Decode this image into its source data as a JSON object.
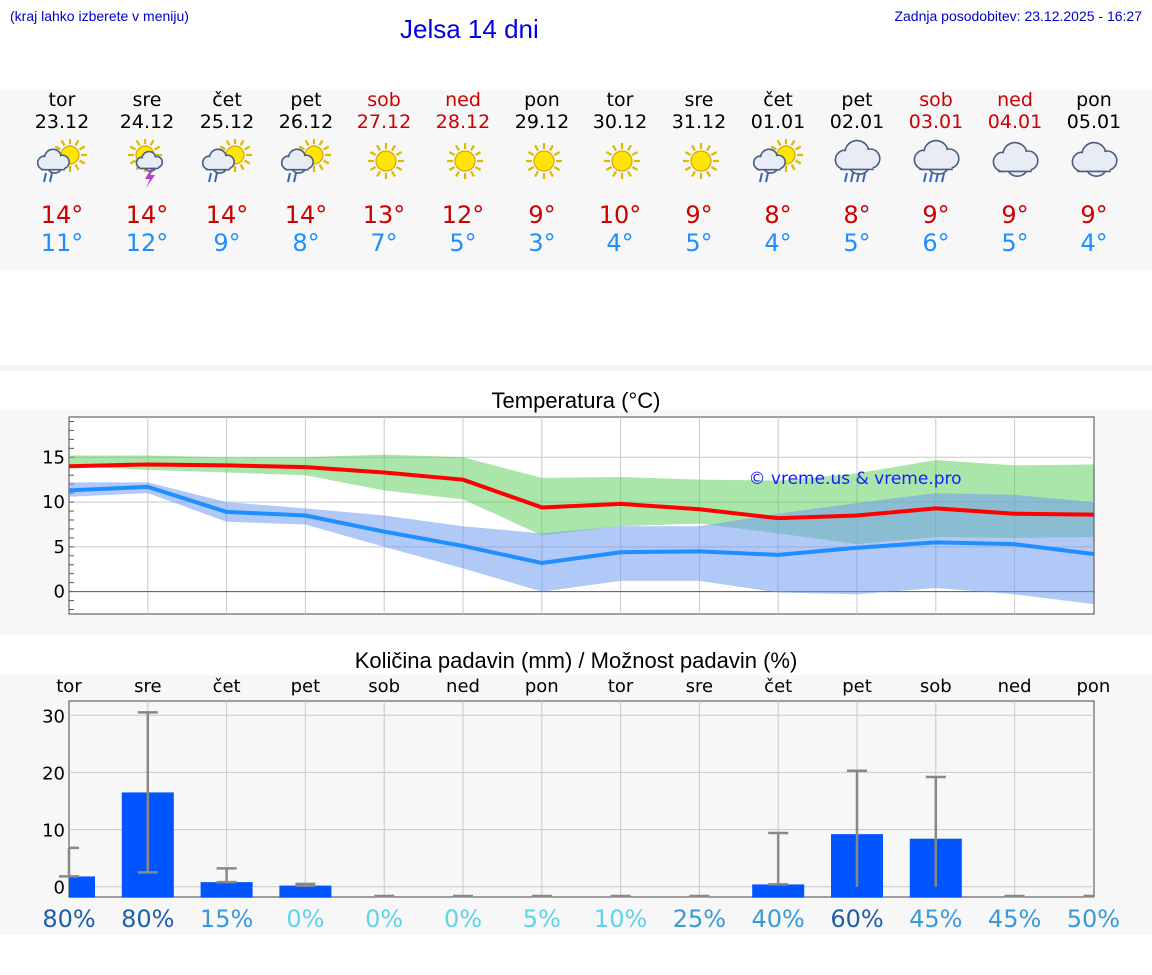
{
  "header": {
    "menu_hint": "(kraj lahko izberete v meniju)",
    "title": "Jelsa 14 dni",
    "updated": "Zadnja posodobitev: 23.12.2025 - 16:27"
  },
  "colors": {
    "max": "#cc0000",
    "min": "#1f8fff",
    "weekend": "#cc0000",
    "bar": "#0055ff"
  },
  "forecast": [
    {
      "day": "tor",
      "date": "23.12",
      "icon": "sun-cloud-rain-icon",
      "max": "14°",
      "min": "11°",
      "weekend": false
    },
    {
      "day": "sre",
      "date": "24.12",
      "icon": "sun-storm-icon",
      "max": "14°",
      "min": "12°",
      "weekend": false
    },
    {
      "day": "čet",
      "date": "25.12",
      "icon": "sun-cloud-rain-icon",
      "max": "14°",
      "min": "9°",
      "weekend": false
    },
    {
      "day": "pet",
      "date": "26.12",
      "icon": "sun-cloud-rain-icon",
      "max": "14°",
      "min": "8°",
      "weekend": false
    },
    {
      "day": "sob",
      "date": "27.12",
      "icon": "sun-icon",
      "max": "13°",
      "min": "7°",
      "weekend": true
    },
    {
      "day": "ned",
      "date": "28.12",
      "icon": "sun-icon",
      "max": "12°",
      "min": "5°",
      "weekend": true
    },
    {
      "day": "pon",
      "date": "29.12",
      "icon": "sun-icon",
      "max": "9°",
      "min": "3°",
      "weekend": false
    },
    {
      "day": "tor",
      "date": "30.12",
      "icon": "sun-icon",
      "max": "10°",
      "min": "4°",
      "weekend": false
    },
    {
      "day": "sre",
      "date": "31.12",
      "icon": "sun-icon",
      "max": "9°",
      "min": "5°",
      "weekend": false
    },
    {
      "day": "čet",
      "date": "01.01",
      "icon": "sun-cloud-rain-icon",
      "max": "8°",
      "min": "4°",
      "weekend": false
    },
    {
      "day": "pet",
      "date": "02.01",
      "icon": "cloud-rain-icon",
      "max": "8°",
      "min": "5°",
      "weekend": false
    },
    {
      "day": "sob",
      "date": "03.01",
      "icon": "cloud-rain-icon",
      "max": "9°",
      "min": "6°",
      "weekend": true
    },
    {
      "day": "ned",
      "date": "04.01",
      "icon": "cloud-icon",
      "max": "9°",
      "min": "5°",
      "weekend": true
    },
    {
      "day": "pon",
      "date": "05.01",
      "icon": "cloud-icon",
      "max": "9°",
      "min": "4°",
      "weekend": false
    }
  ],
  "chart_data": [
    {
      "type": "line",
      "title": "Temperatura (°C)",
      "watermark": "© vreme.us & vreme.pro",
      "x": [
        0,
        1,
        2,
        3,
        4,
        5,
        6,
        7,
        8,
        9,
        10,
        11,
        12,
        13
      ],
      "yticks": [
        0,
        5,
        10,
        15
      ],
      "ylim": [
        -2.5,
        19.5
      ],
      "series": [
        {
          "name": "max",
          "color": "#ff0000",
          "values": [
            14,
            14.2,
            14.1,
            13.9,
            13.3,
            12.5,
            9.4,
            9.8,
            9.2,
            8.2,
            8.5,
            9.3,
            8.7,
            8.6
          ]
        },
        {
          "name": "min",
          "color": "#1f8fff",
          "values": [
            11.3,
            11.7,
            8.9,
            8.5,
            6.7,
            5.1,
            3.2,
            4.4,
            4.5,
            4.1,
            4.9,
            5.5,
            5.3,
            4.2
          ]
        }
      ],
      "max_range": {
        "low": [
          14,
          13.6,
          13.3,
          13,
          11.3,
          10.3,
          6.3,
          7.3,
          7.6,
          6.5,
          5.3,
          6.1,
          6,
          6.1
        ],
        "high": [
          15.2,
          15.2,
          15,
          15,
          15.3,
          15,
          12.7,
          12.8,
          12.5,
          12.4,
          13.2,
          14.7,
          14.1,
          14.2
        ]
      },
      "min_range": {
        "low": [
          10.6,
          11,
          7.8,
          7.5,
          5,
          2.6,
          0,
          1.2,
          1.2,
          -0.1,
          -0.3,
          0.4,
          -0.3,
          -1.4
        ],
        "high": [
          12.2,
          12.2,
          10,
          9.3,
          8.5,
          7.3,
          6.5,
          7.3,
          7.3,
          8.7,
          9.9,
          11,
          10.8,
          10
        ]
      }
    },
    {
      "type": "bar",
      "title": "Količina padavin (mm) / Možnost padavin (%)",
      "categories": [
        "tor",
        "sre",
        "čet",
        "pet",
        "sob",
        "ned",
        "pon",
        "tor",
        "sre",
        "čet",
        "pet",
        "sob",
        "ned",
        "pon"
      ],
      "values": [
        1.8,
        16.5,
        0.8,
        0.2,
        0,
        0,
        0,
        0,
        0,
        0.4,
        9.2,
        8.4,
        0,
        0
      ],
      "err_low": [
        1.8,
        2.5,
        0.8,
        0.2,
        0,
        0,
        0,
        0,
        0,
        0.4,
        0,
        0,
        0,
        0
      ],
      "err_high": [
        6.8,
        30.5,
        3.2,
        0.5,
        0,
        0,
        0,
        0,
        0,
        9.4,
        20.3,
        19.2,
        0,
        0
      ],
      "yticks": [
        0,
        10,
        20,
        30
      ],
      "ylim": [
        -1.8,
        32.5
      ],
      "probability": [
        "80%",
        "80%",
        "15%",
        "0%",
        "0%",
        "0%",
        "5%",
        "10%",
        "25%",
        "40%",
        "60%",
        "45%",
        "45%",
        "50%"
      ],
      "prob_colors": [
        "#1e5fa8",
        "#1e5fa8",
        "#3a9ad9",
        "#5fd3e8",
        "#5fd3e8",
        "#5fd3e8",
        "#5fd3e8",
        "#5fd3e8",
        "#3a9ad9",
        "#3a9ad9",
        "#1e5fa8",
        "#3a9ad9",
        "#3a9ad9",
        "#3a9ad9"
      ]
    }
  ]
}
